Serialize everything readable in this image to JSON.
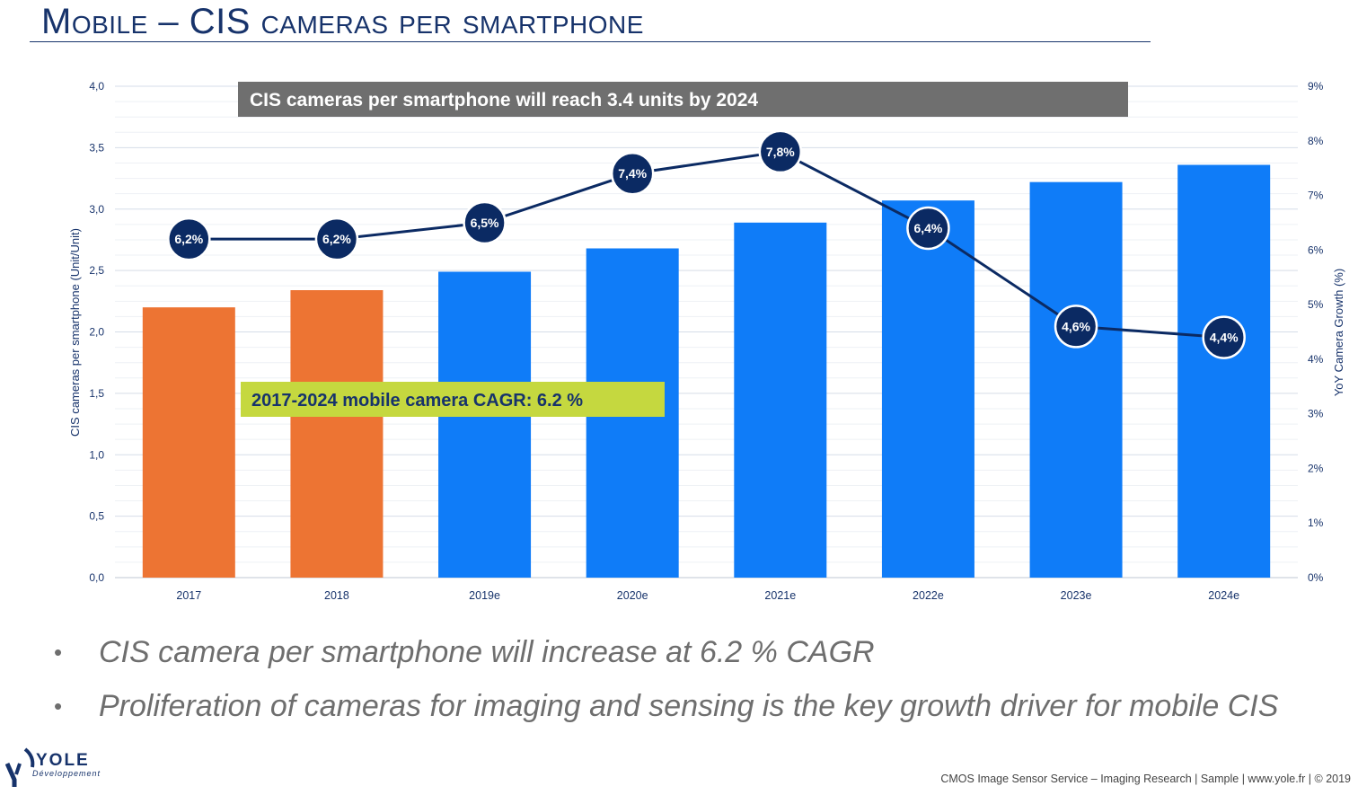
{
  "title": "Mobile – CIS cameras per smartphone",
  "bullets": [
    "CIS camera per smartphone will increase at 6.2 % CAGR",
    "Proliferation of cameras for imaging and sensing is the key growth driver for mobile CIS"
  ],
  "footer": "CMOS Image Sensor Service – Imaging Research | Sample | www.yole.fr | © 2019",
  "logo": {
    "name": "YOLE",
    "sub": "Développement"
  },
  "colors": {
    "title": "#17336b",
    "actual_bar": "#ed7433",
    "forecast_bar": "#0f7cf8",
    "line": "#0b2a63",
    "banner_gray": "#6f6f6f",
    "banner_green": "#c5d83f"
  },
  "chart_data": {
    "type": "bar+line",
    "categories": [
      "2017",
      "2018",
      "2019e",
      "2020e",
      "2021e",
      "2022e",
      "2023e",
      "2024e"
    ],
    "series": [
      {
        "axis": "left",
        "type": "bar",
        "values": [
          2.2,
          2.34,
          2.49,
          2.68,
          2.89,
          3.07,
          3.22,
          3.36
        ]
      },
      {
        "axis": "right",
        "type": "line",
        "values": [
          6.2,
          6.2,
          6.5,
          7.4,
          7.8,
          6.4,
          4.6,
          4.4
        ],
        "labels": [
          "6,2%",
          "6,2%",
          "6,5%",
          "7,4%",
          "7,8%",
          "6,4%",
          "4,6%",
          "4,4%"
        ]
      }
    ],
    "ylabel": "CIS cameras per smartphone (Unit/Unit)",
    "y2label": "YoY Camera Growth (%)",
    "ylim": [
      0,
      4.0
    ],
    "y2lim": [
      0,
      9
    ],
    "yticks": [
      "0,0",
      "0,5",
      "1,0",
      "1,5",
      "2,0",
      "2,5",
      "3,0",
      "3,5",
      "4,0"
    ],
    "y2ticks": [
      "0%",
      "1%",
      "2%",
      "3%",
      "4%",
      "5%",
      "6%",
      "7%",
      "8%",
      "9%"
    ],
    "grid": true,
    "annotations": [
      "CIS cameras per smartphone will reach 3.4 units by 2024",
      "2017-2024 mobile camera CAGR: 6.2 %"
    ]
  }
}
